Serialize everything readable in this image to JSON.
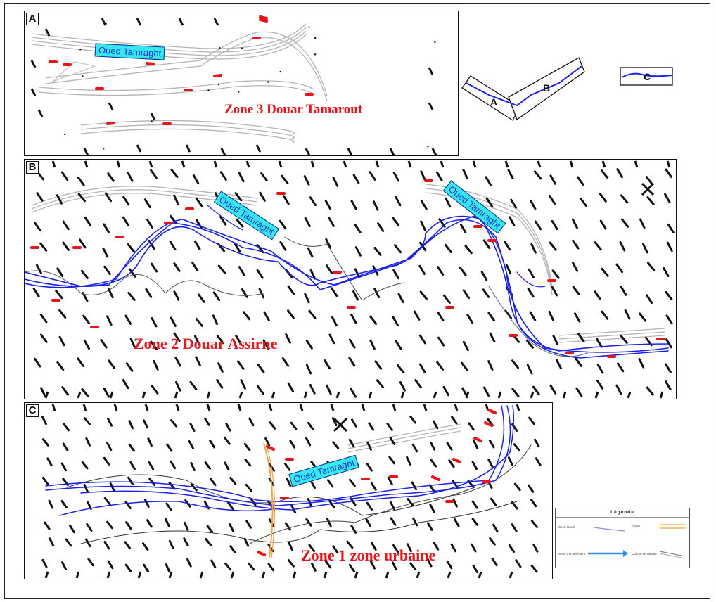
{
  "panels": [
    {
      "id": "A",
      "letter": "A",
      "zone_label": "Zone 3 Douar Tamarout",
      "river_tag": "Oued Tamraght"
    },
    {
      "id": "B",
      "letter": "B",
      "zone_label": "Zone 2 Douar Assirne",
      "river_tags": [
        "Oued Tamraght",
        "Oued Tamraght"
      ]
    },
    {
      "id": "C",
      "letter": "C",
      "zone_label": "Zone 1 zone urbaine",
      "river_tag": "Oued Tamraght"
    }
  ],
  "key_map": {
    "labels": [
      "A",
      "B",
      "C"
    ]
  },
  "legend": {
    "title": "Légende",
    "items": [
      {
        "label": "Shéd Oued",
        "symbol": "blue-line-icon",
        "color": "#8a8fe8"
      },
      {
        "label": "Route",
        "symbol": "orange-line-icon",
        "color": "#f2a14a"
      },
      {
        "label": "Sens d'écoulement",
        "symbol": "blue-arrow-icon",
        "color": "#2a8ff0"
      },
      {
        "label": "Courbe de niveau",
        "symbol": "grey-lines-icon",
        "color": "#888888"
      }
    ]
  },
  "colors": {
    "river": "#1a22e6",
    "markers": "#e8141a",
    "zone_label": "#e8141a",
    "river_tag_bg": "#35e8f0",
    "road": "#f2a14a",
    "contour": "#b5b5b5"
  }
}
